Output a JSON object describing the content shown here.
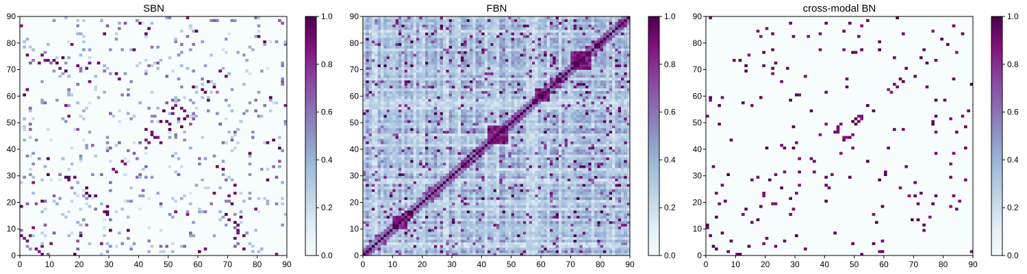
{
  "chart_data": [
    {
      "type": "heatmap",
      "title": "SBN",
      "xlabel": "",
      "ylabel": "",
      "xlim": [
        0,
        90
      ],
      "ylim": [
        0,
        90
      ],
      "x_ticks": [
        "0",
        "10",
        "20",
        "30",
        "40",
        "50",
        "60",
        "70",
        "80",
        "90"
      ],
      "y_ticks": [
        "0",
        "10",
        "20",
        "30",
        "40",
        "50",
        "60",
        "70",
        "80",
        "90"
      ],
      "grid_size": 90,
      "colorbar": {
        "range": [
          0.0,
          1.0
        ],
        "ticks": [
          "0.0",
          "0.2",
          "0.4",
          "0.6",
          "0.8",
          "1.0"
        ]
      },
      "colormap": [
        "#f7fcfd",
        "#e0ecf4",
        "#bfd3e6",
        "#9ebcda",
        "#8c96c6",
        "#8c6bb1",
        "#88419d",
        "#810f7c",
        "#4d004b"
      ],
      "background": 0.02,
      "approx_strong_links": [
        [
          0,
          7
        ],
        [
          0,
          18
        ],
        [
          2,
          62
        ],
        [
          3,
          7
        ],
        [
          5,
          2
        ],
        [
          6,
          72
        ],
        [
          6,
          1
        ],
        [
          7,
          75
        ],
        [
          8,
          73
        ],
        [
          9,
          73
        ],
        [
          10,
          4
        ],
        [
          11,
          73
        ],
        [
          13,
          70
        ],
        [
          15,
          29
        ],
        [
          15,
          56
        ],
        [
          16,
          52
        ],
        [
          16,
          29
        ],
        [
          18,
          29
        ],
        [
          19,
          71
        ],
        [
          20,
          7
        ],
        [
          22,
          23
        ],
        [
          23,
          72
        ],
        [
          25,
          22
        ],
        [
          26,
          72
        ],
        [
          27,
          4
        ],
        [
          28,
          16
        ],
        [
          28,
          83
        ],
        [
          30,
          9
        ],
        [
          32,
          31
        ],
        [
          33,
          66
        ],
        [
          35,
          34
        ],
        [
          36,
          9
        ],
        [
          38,
          77
        ],
        [
          42,
          43
        ],
        [
          44,
          46
        ],
        [
          45,
          44
        ],
        [
          47,
          42
        ],
        [
          48,
          54
        ],
        [
          49,
          50
        ],
        [
          50,
          47
        ],
        [
          51,
          55
        ],
        [
          52,
          16
        ],
        [
          53,
          51
        ],
        [
          55,
          54
        ],
        [
          56,
          52
        ],
        [
          58,
          63
        ],
        [
          59,
          84
        ],
        [
          60,
          1
        ],
        [
          61,
          62
        ],
        [
          63,
          65
        ],
        [
          65,
          23
        ],
        [
          67,
          69
        ],
        [
          68,
          32
        ],
        [
          69,
          15
        ],
        [
          70,
          22
        ],
        [
          72,
          12
        ],
        [
          74,
          14
        ],
        [
          75,
          2
        ],
        [
          79,
          17
        ],
        [
          82,
          80
        ],
        [
          83,
          42
        ],
        [
          85,
          43
        ],
        [
          86,
          0
        ],
        [
          87,
          40
        ],
        [
          89,
          56
        ]
      ],
      "colorbar_label": ""
    },
    {
      "type": "heatmap",
      "title": "FBN",
      "xlabel": "",
      "ylabel": "",
      "xlim": [
        0,
        90
      ],
      "ylim": [
        0,
        90
      ],
      "x_ticks": [
        "0",
        "10",
        "20",
        "30",
        "40",
        "50",
        "60",
        "70",
        "80",
        "90"
      ],
      "y_ticks": [
        "0",
        "10",
        "20",
        "30",
        "40",
        "50",
        "60",
        "70",
        "80",
        "90"
      ],
      "grid_size": 90,
      "colorbar": {
        "range": [
          0.0,
          1.0
        ],
        "ticks": [
          "0.0",
          "0.2",
          "0.4",
          "0.6",
          "0.8",
          "1.0"
        ]
      },
      "colormap": [
        "#f7fcfd",
        "#e0ecf4",
        "#bfd3e6",
        "#9ebcda",
        "#8c96c6",
        "#8c6bb1",
        "#88419d",
        "#810f7c",
        "#4d004b"
      ],
      "diagonal": 1.0,
      "strong_diagonal_blocks": [
        [
          42,
          48
        ],
        [
          10,
          14
        ],
        [
          58,
          62
        ],
        [
          70,
          76
        ]
      ],
      "colorbar_label": ""
    },
    {
      "type": "heatmap",
      "title": "cross-modal BN",
      "xlabel": "",
      "ylabel": "",
      "xlim": [
        0,
        90
      ],
      "ylim": [
        0,
        90
      ],
      "x_ticks": [
        "0",
        "10",
        "20",
        "30",
        "40",
        "50",
        "60",
        "70",
        "80",
        "90"
      ],
      "y_ticks": [
        "0",
        "10",
        "20",
        "30",
        "40",
        "50",
        "60",
        "70",
        "80",
        "90"
      ],
      "grid_size": 90,
      "colorbar": {
        "range": [
          0.0,
          1.0
        ],
        "ticks": [
          "0.0",
          "0.2",
          "0.4",
          "0.6",
          "0.8",
          "1.0"
        ]
      },
      "colormap": [
        "#f7fcfd",
        "#e0ecf4",
        "#bfd3e6",
        "#9ebcda",
        "#8c96c6",
        "#8c6bb1",
        "#88419d",
        "#810f7c",
        "#4d004b"
      ],
      "background": 0.0,
      "approx_strong_links": [
        [
          0,
          11
        ],
        [
          1,
          58
        ],
        [
          5,
          8
        ],
        [
          7,
          1
        ],
        [
          8,
          43
        ],
        [
          9,
          73
        ],
        [
          10,
          0
        ],
        [
          11,
          73
        ],
        [
          13,
          71
        ],
        [
          15,
          12
        ],
        [
          17,
          29
        ],
        [
          19,
          71
        ],
        [
          22,
          19
        ],
        [
          23,
          72
        ],
        [
          25,
          25
        ],
        [
          26,
          5
        ],
        [
          28,
          15
        ],
        [
          30,
          7
        ],
        [
          31,
          36
        ],
        [
          33,
          67
        ],
        [
          36,
          35
        ],
        [
          38,
          77
        ],
        [
          40,
          20
        ],
        [
          43,
          46
        ],
        [
          44,
          47
        ],
        [
          46,
          44
        ],
        [
          48,
          44
        ],
        [
          49,
          50
        ],
        [
          50,
          51
        ],
        [
          52,
          52
        ],
        [
          54,
          56
        ],
        [
          56,
          15
        ],
        [
          58,
          28
        ],
        [
          60,
          31
        ],
        [
          61,
          62
        ],
        [
          63,
          64
        ],
        [
          65,
          25
        ],
        [
          67,
          70
        ],
        [
          69,
          13
        ],
        [
          70,
          22
        ],
        [
          73,
          77
        ],
        [
          75,
          14
        ],
        [
          77,
          22
        ],
        [
          79,
          81
        ],
        [
          82,
          51
        ],
        [
          84,
          46
        ],
        [
          85,
          20
        ],
        [
          87,
          40
        ],
        [
          89,
          1
        ]
      ],
      "colorbar_label": ""
    }
  ]
}
